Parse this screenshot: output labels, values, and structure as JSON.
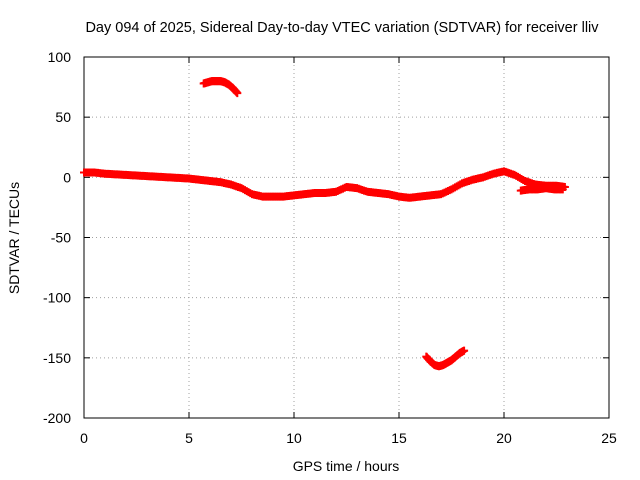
{
  "chart_data": {
    "type": "scatter",
    "title": "Day 094 of 2025, Sidereal Day-to-day VTEC variation (SDTVAR) for receiver lliv",
    "xlabel": "GPS time / hours",
    "ylabel": "SDTVAR / TECUs",
    "xlim": [
      0,
      25
    ],
    "ylim": [
      -200,
      100
    ],
    "xticks": [
      0,
      5,
      10,
      15,
      20,
      25
    ],
    "yticks": [
      -200,
      -150,
      -100,
      -50,
      0,
      50,
      100
    ],
    "xtick_labels": [
      "0",
      "5",
      "10",
      "15",
      "20",
      "25"
    ],
    "ytick_labels": [
      "-200",
      "-150",
      "-100",
      "-50",
      "0",
      "50",
      "100"
    ],
    "grid": true,
    "marker_color": "#ff0000",
    "series": [
      {
        "name": "main",
        "x": [
          0,
          0.5,
          1,
          1.5,
          2,
          2.5,
          3,
          3.5,
          4,
          4.5,
          5,
          5.5,
          6,
          6.5,
          7,
          7.5,
          8,
          8.5,
          9,
          9.5,
          10,
          10.5,
          11,
          11.5,
          12,
          12.5,
          13,
          13.5,
          14,
          14.5,
          15,
          15.5,
          16,
          16.5,
          17,
          17.5,
          18,
          18.5,
          19,
          19.5,
          20,
          20.5,
          21,
          21.5,
          22,
          22.5,
          22.9
        ],
        "y": [
          4,
          4,
          3,
          2.5,
          2,
          1.5,
          1,
          0.5,
          0,
          -0.5,
          -1,
          -2,
          -3,
          -4,
          -6,
          -9,
          -14,
          -16,
          -16,
          -16,
          -15,
          -14,
          -13,
          -13,
          -12,
          -8,
          -9,
          -12,
          -13,
          -14,
          -16,
          -17,
          -16,
          -15,
          -14,
          -10,
          -5,
          -2,
          0,
          3,
          5,
          2,
          -3,
          -6,
          -7,
          -7,
          -8
        ]
      },
      {
        "name": "lower-branch",
        "x": [
          20.8,
          21.2,
          21.6,
          22,
          22.4,
          22.8
        ],
        "y": [
          -11,
          -10,
          -10,
          -9,
          -10,
          -10
        ]
      },
      {
        "name": "upper-arc",
        "x": [
          5.7,
          5.9,
          6.1,
          6.3,
          6.5,
          6.7,
          6.9,
          7.1,
          7.3
        ],
        "y": [
          78,
          79,
          80,
          80,
          80,
          79,
          77,
          74,
          70
        ]
      },
      {
        "name": "lower-arc",
        "x": [
          16.3,
          16.5,
          16.7,
          16.9,
          17.1,
          17.3,
          17.5,
          17.7,
          17.9,
          18.1
        ],
        "y": [
          -149,
          -153,
          -156,
          -157,
          -156,
          -154,
          -152,
          -149,
          -146,
          -144
        ]
      }
    ]
  }
}
